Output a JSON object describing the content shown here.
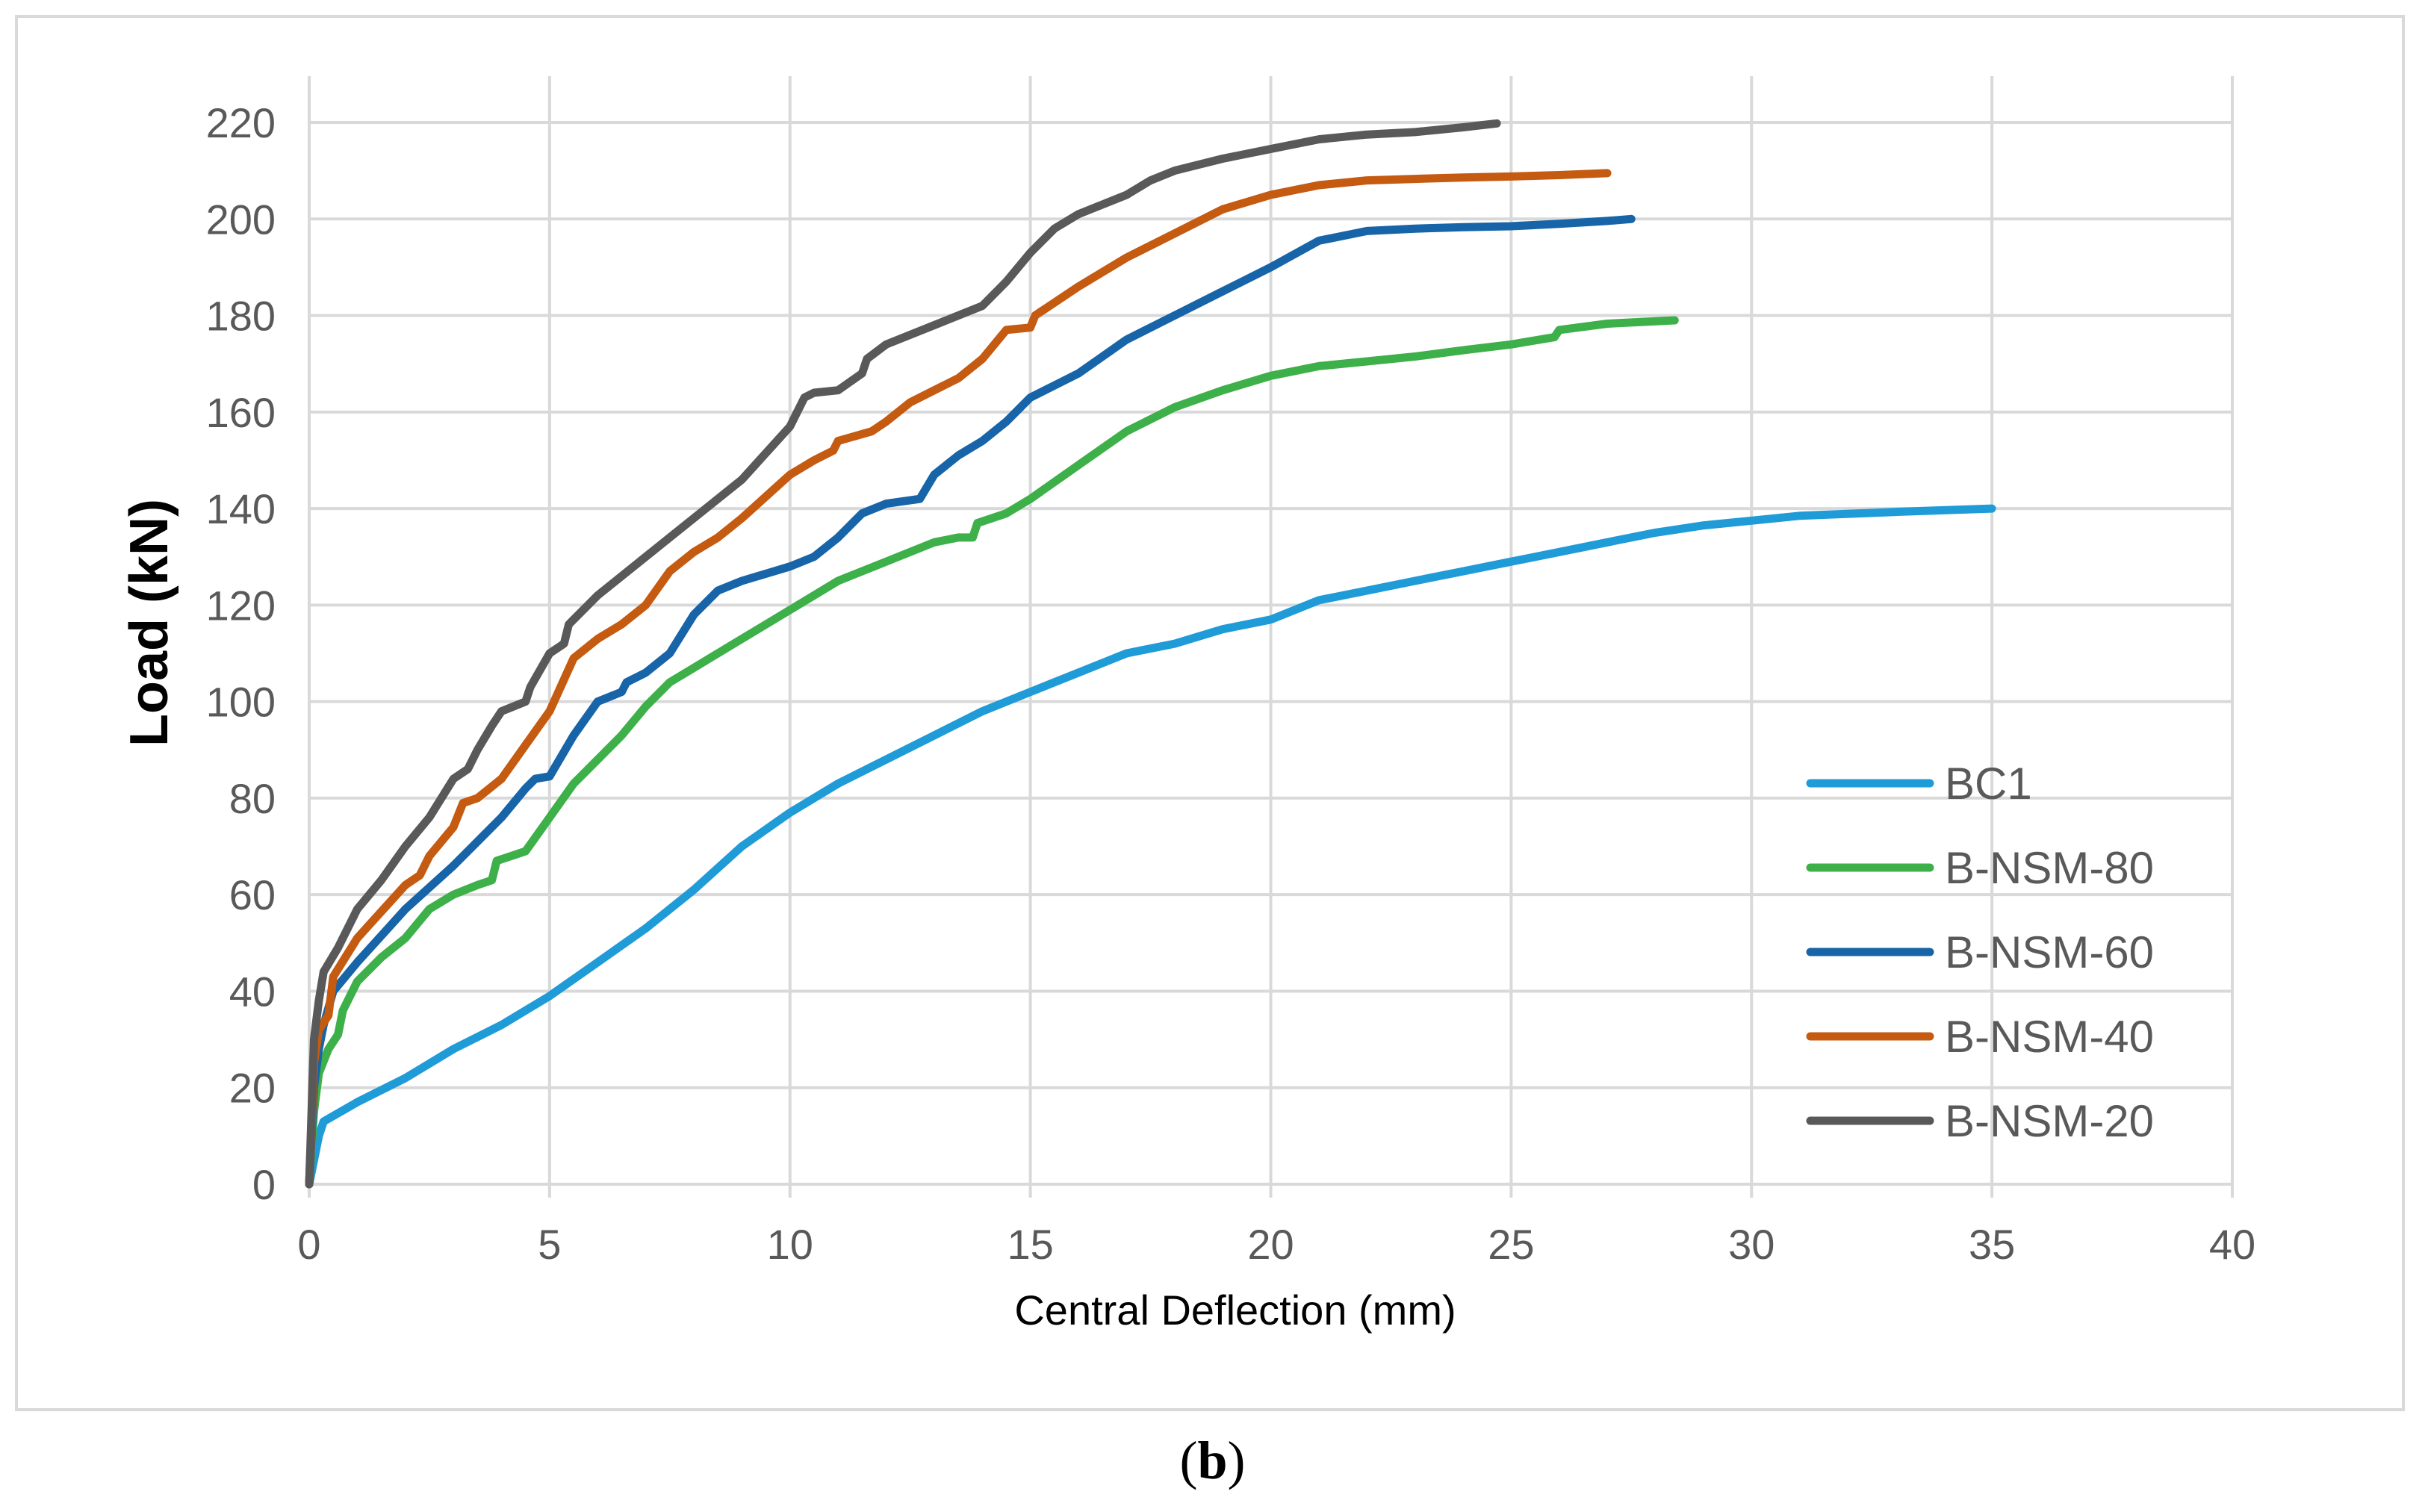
{
  "caption": {
    "open": "(",
    "letter": "b",
    "close": ")"
  },
  "chart_data": {
    "type": "line",
    "title": "",
    "xlabel": "Central Deflection (mm)",
    "ylabel": "Load (kN)",
    "xlim": [
      0,
      40
    ],
    "ylim": [
      0,
      220
    ],
    "xticks": [
      0,
      5,
      10,
      15,
      20,
      25,
      30,
      35,
      40
    ],
    "yticks": [
      0,
      20,
      40,
      60,
      80,
      100,
      120,
      140,
      160,
      180,
      200,
      220
    ],
    "grid": true,
    "legend_position": "right",
    "series": [
      {
        "name": "BC1",
        "color": "#1f9bd7",
        "points": [
          [
            0,
            0
          ],
          [
            0.2,
            10
          ],
          [
            0.3,
            13
          ],
          [
            1,
            17
          ],
          [
            2,
            22
          ],
          [
            3,
            28
          ],
          [
            4,
            33
          ],
          [
            5,
            39
          ],
          [
            6,
            46
          ],
          [
            7,
            53
          ],
          [
            8,
            61
          ],
          [
            9,
            70
          ],
          [
            10,
            77
          ],
          [
            11,
            83
          ],
          [
            12,
            88
          ],
          [
            13,
            93
          ],
          [
            14,
            98
          ],
          [
            15,
            102
          ],
          [
            16,
            106
          ],
          [
            17,
            110
          ],
          [
            18,
            112
          ],
          [
            19,
            115
          ],
          [
            20,
            117
          ],
          [
            21,
            121
          ],
          [
            22,
            123
          ],
          [
            23,
            125
          ],
          [
            24,
            127
          ],
          [
            25,
            129
          ],
          [
            26,
            131
          ],
          [
            27,
            133
          ],
          [
            28,
            135
          ],
          [
            29,
            136.5
          ],
          [
            30,
            137.5
          ],
          [
            31,
            138.5
          ],
          [
            33,
            139.3
          ],
          [
            35,
            140
          ]
        ]
      },
      {
        "name": "B-NSM-80",
        "color": "#3db049",
        "points": [
          [
            0,
            0
          ],
          [
            0.1,
            15
          ],
          [
            0.2,
            23
          ],
          [
            0.4,
            28
          ],
          [
            0.6,
            31
          ],
          [
            0.7,
            36
          ],
          [
            1,
            42
          ],
          [
            1.5,
            47
          ],
          [
            2,
            51
          ],
          [
            2.5,
            57
          ],
          [
            3,
            60
          ],
          [
            3.5,
            62
          ],
          [
            3.8,
            63
          ],
          [
            3.9,
            67
          ],
          [
            4.2,
            68
          ],
          [
            4.5,
            69
          ],
          [
            5,
            76
          ],
          [
            5.5,
            83
          ],
          [
            6,
            88
          ],
          [
            6.5,
            93
          ],
          [
            7,
            99
          ],
          [
            7.5,
            104
          ],
          [
            8,
            107
          ],
          [
            9,
            113
          ],
          [
            10,
            119
          ],
          [
            11,
            125
          ],
          [
            12,
            129
          ],
          [
            13,
            133
          ],
          [
            13.5,
            134
          ],
          [
            13.8,
            134
          ],
          [
            13.9,
            137
          ],
          [
            14.5,
            139
          ],
          [
            15,
            142
          ],
          [
            16,
            149
          ],
          [
            17,
            156
          ],
          [
            18,
            161
          ],
          [
            19,
            164.5
          ],
          [
            20,
            167.5
          ],
          [
            21,
            169.5
          ],
          [
            22,
            170.5
          ],
          [
            23,
            171.5
          ],
          [
            24,
            172.8
          ],
          [
            25,
            174
          ],
          [
            25.9,
            175.5
          ],
          [
            26,
            177
          ],
          [
            27,
            178.3
          ],
          [
            28.4,
            179
          ]
        ]
      },
      {
        "name": "B-NSM-60",
        "color": "#1764a8",
        "points": [
          [
            0,
            0
          ],
          [
            0.1,
            20
          ],
          [
            0.2,
            28
          ],
          [
            0.3,
            33
          ],
          [
            0.5,
            40
          ],
          [
            1,
            46
          ],
          [
            2,
            57
          ],
          [
            3,
            66
          ],
          [
            4,
            76
          ],
          [
            4.5,
            82
          ],
          [
            4.7,
            84
          ],
          [
            5,
            84.5
          ],
          [
            5.5,
            93
          ],
          [
            6,
            100
          ],
          [
            6.5,
            102
          ],
          [
            6.6,
            104
          ],
          [
            7,
            106
          ],
          [
            7.5,
            110
          ],
          [
            8,
            118
          ],
          [
            8.5,
            123
          ],
          [
            9,
            125
          ],
          [
            10,
            128
          ],
          [
            10.5,
            130
          ],
          [
            11,
            134
          ],
          [
            11.5,
            139
          ],
          [
            12,
            141
          ],
          [
            12.7,
            142
          ],
          [
            13,
            147
          ],
          [
            13.5,
            151
          ],
          [
            14,
            154
          ],
          [
            14.5,
            158
          ],
          [
            15,
            163
          ],
          [
            16,
            168
          ],
          [
            17,
            175
          ],
          [
            18,
            180
          ],
          [
            19,
            185
          ],
          [
            20,
            190
          ],
          [
            21,
            195.5
          ],
          [
            22,
            197.5
          ],
          [
            23,
            198
          ],
          [
            24,
            198.3
          ],
          [
            25,
            198.5
          ],
          [
            26,
            199
          ],
          [
            27,
            199.6
          ],
          [
            27.5,
            200
          ]
        ]
      },
      {
        "name": "B-NSM-40",
        "color": "#c55a11",
        "points": [
          [
            0,
            0
          ],
          [
            0.1,
            25
          ],
          [
            0.2,
            32
          ],
          [
            0.4,
            35
          ],
          [
            0.5,
            43
          ],
          [
            1,
            51
          ],
          [
            2,
            62
          ],
          [
            2.3,
            64
          ],
          [
            2.5,
            68
          ],
          [
            3,
            74
          ],
          [
            3.2,
            79
          ],
          [
            3.5,
            80
          ],
          [
            4,
            84
          ],
          [
            4.5,
            91
          ],
          [
            5,
            98
          ],
          [
            5.5,
            109
          ],
          [
            6,
            113
          ],
          [
            6.5,
            116
          ],
          [
            7,
            120
          ],
          [
            7.5,
            127
          ],
          [
            8,
            131
          ],
          [
            8.5,
            134
          ],
          [
            9,
            138
          ],
          [
            10,
            147
          ],
          [
            10.5,
            150
          ],
          [
            10.9,
            152
          ],
          [
            11,
            154
          ],
          [
            11.7,
            156
          ],
          [
            12,
            158
          ],
          [
            12.5,
            162
          ],
          [
            13,
            164.5
          ],
          [
            13.5,
            167
          ],
          [
            14,
            171
          ],
          [
            14.5,
            177
          ],
          [
            15,
            177.5
          ],
          [
            15.1,
            180
          ],
          [
            16,
            186
          ],
          [
            17,
            192
          ],
          [
            18,
            197
          ],
          [
            19,
            202
          ],
          [
            20,
            205
          ],
          [
            21,
            207
          ],
          [
            22,
            208
          ],
          [
            23,
            208.3
          ],
          [
            24,
            208.6
          ],
          [
            25,
            208.8
          ],
          [
            26,
            209.1
          ],
          [
            27,
            209.5
          ]
        ]
      },
      {
        "name": "B-NSM-20",
        "color": "#595959",
        "points": [
          [
            0,
            0
          ],
          [
            0.1,
            30
          ],
          [
            0.2,
            38
          ],
          [
            0.3,
            44
          ],
          [
            0.6,
            49
          ],
          [
            0.8,
            53
          ],
          [
            1,
            57
          ],
          [
            1.5,
            63
          ],
          [
            2,
            70
          ],
          [
            2.5,
            76
          ],
          [
            3,
            84
          ],
          [
            3.3,
            86
          ],
          [
            3.5,
            90
          ],
          [
            3.8,
            95
          ],
          [
            4,
            98
          ],
          [
            4.5,
            100
          ],
          [
            4.6,
            103
          ],
          [
            5,
            110
          ],
          [
            5.3,
            112
          ],
          [
            5.4,
            116
          ],
          [
            6,
            122
          ],
          [
            7,
            130
          ],
          [
            8,
            138
          ],
          [
            9,
            146
          ],
          [
            10,
            157
          ],
          [
            10.3,
            163
          ],
          [
            10.5,
            164
          ],
          [
            11,
            164.5
          ],
          [
            11.5,
            168
          ],
          [
            11.6,
            171
          ],
          [
            12,
            174
          ],
          [
            13,
            178
          ],
          [
            14,
            182
          ],
          [
            14.5,
            187
          ],
          [
            15,
            193
          ],
          [
            15.5,
            198
          ],
          [
            16,
            201
          ],
          [
            17,
            205
          ],
          [
            17.5,
            208
          ],
          [
            18,
            210
          ],
          [
            19,
            212.5
          ],
          [
            20,
            214.5
          ],
          [
            21,
            216.5
          ],
          [
            22,
            217.5
          ],
          [
            23,
            218
          ],
          [
            24,
            219
          ],
          [
            24.7,
            219.8
          ]
        ]
      }
    ]
  }
}
